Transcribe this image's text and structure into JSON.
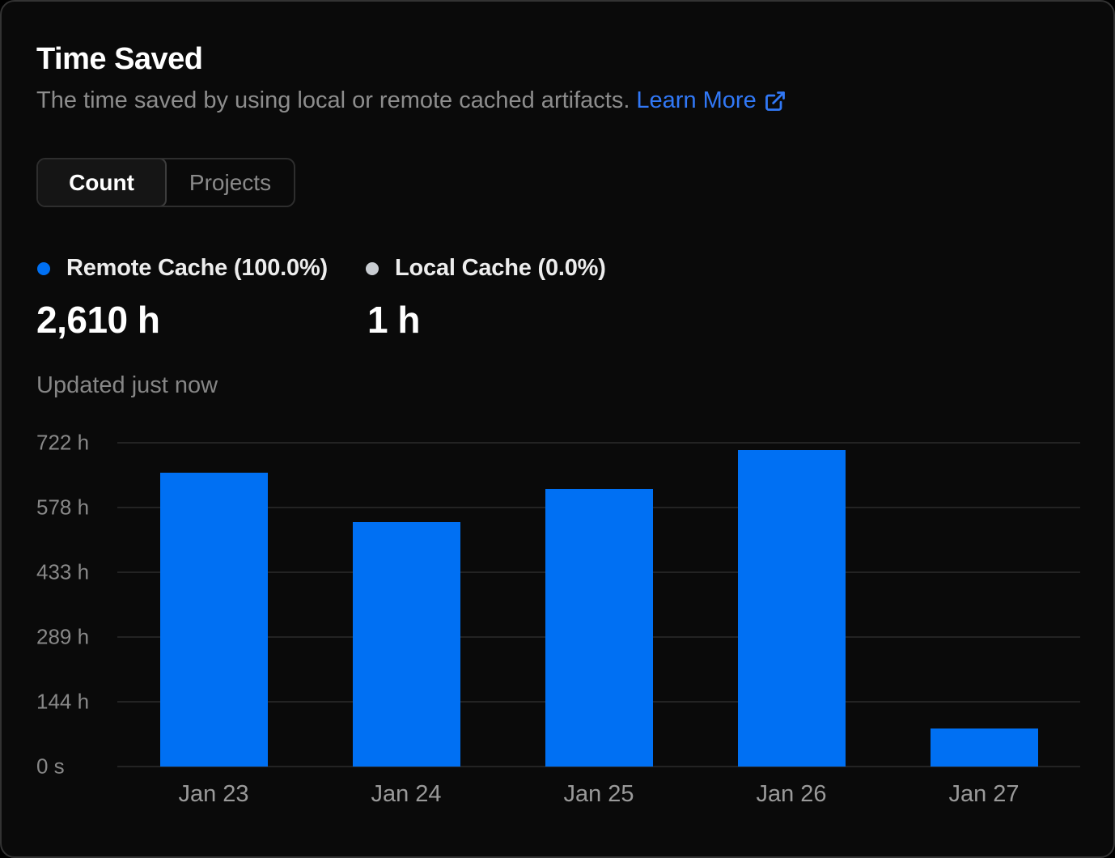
{
  "header": {
    "title": "Time Saved",
    "subtitle": "The time saved by using local or remote cached artifacts.",
    "learn_more_label": "Learn More"
  },
  "view_toggle": {
    "options": [
      {
        "label": "Count",
        "active": true
      },
      {
        "label": "Projects",
        "active": false
      }
    ]
  },
  "legend": {
    "items": [
      {
        "label": "Remote Cache (100.0%)",
        "value": "2,610 h",
        "dot_color": "#0070f3"
      },
      {
        "label": "Local Cache (0.0%)",
        "value": "1 h",
        "dot_color": "#c9cdd2"
      }
    ]
  },
  "status": {
    "updated_text": "Updated just now"
  },
  "colors": {
    "card_background": "#0a0a0a",
    "card_border": "#333333",
    "bar_blue": "#0070f3",
    "link_blue": "#3178f6",
    "local_cache_grey": "#c9cdd2",
    "grid_line": "#232323",
    "text_primary": "#ffffff",
    "text_secondary": "#888888"
  },
  "chart_data": {
    "type": "bar",
    "title": "Time Saved",
    "categories": [
      "Jan 23",
      "Jan 24",
      "Jan 25",
      "Jan 26",
      "Jan 27"
    ],
    "series": [
      {
        "name": "Remote Cache",
        "color": "#0070f3",
        "values": [
          655,
          545,
          620,
          705,
          85
        ]
      }
    ],
    "unit": "h",
    "total_label": "2,610 h",
    "y_ticks": [
      "722 h",
      "578 h",
      "433 h",
      "289 h",
      "144 h",
      "0 s"
    ],
    "ylim": [
      0,
      722
    ],
    "grid": true,
    "legend_position": "top"
  }
}
